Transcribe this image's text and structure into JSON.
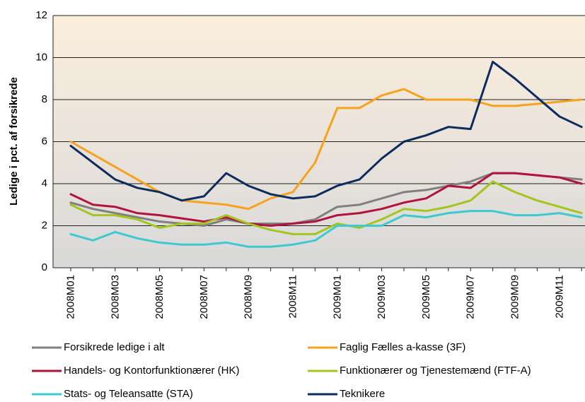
{
  "chart_data": {
    "type": "line",
    "ylabel": "Ledige i pct. af forsikrede",
    "categories": [
      "2008M01",
      null,
      "2008M03",
      null,
      "2008M05",
      null,
      "2008M07",
      null,
      "2008M09",
      null,
      "2008M11",
      null,
      "2009M01",
      null,
      "2009M03",
      null,
      "2009M05",
      null,
      "2009M07",
      null,
      "2009M09",
      null,
      "2009M11",
      null
    ],
    "series": [
      {
        "name": "Forsikrede ledige i alt",
        "color": "#808080",
        "values": [
          3.1,
          2.8,
          2.6,
          2.4,
          2.2,
          2.1,
          2.0,
          2.3,
          2.1,
          2.1,
          2.1,
          2.3,
          2.9,
          3.0,
          3.3,
          3.6,
          3.7,
          3.9,
          4.1,
          4.5,
          4.5,
          4.4,
          4.3,
          4.2
        ]
      },
      {
        "name": "Faglig Fælles a-kasse (3F)",
        "color": "#f6a21c",
        "values": [
          6.0,
          5.4,
          4.8,
          4.2,
          3.6,
          3.2,
          3.1,
          3.0,
          2.8,
          3.3,
          3.6,
          5.0,
          7.6,
          7.6,
          8.2,
          8.5,
          8.0,
          8.0,
          8.0,
          7.7,
          7.7,
          7.8,
          7.9,
          8.0
        ]
      },
      {
        "name": "Handels- og Kontorfunktionærer (HK)",
        "color": "#b3123f",
        "values": [
          3.5,
          3.0,
          2.9,
          2.6,
          2.5,
          2.35,
          2.2,
          2.4,
          2.1,
          2.0,
          2.1,
          2.2,
          2.5,
          2.6,
          2.8,
          3.1,
          3.3,
          3.9,
          3.8,
          4.5,
          4.5,
          4.4,
          4.3,
          4.0
        ]
      },
      {
        "name": "Funktionærer og Tjenestemænd (FTF-A)",
        "color": "#a3c61f",
        "values": [
          3.0,
          2.5,
          2.5,
          2.3,
          1.9,
          2.1,
          2.1,
          2.5,
          2.1,
          1.8,
          1.6,
          1.6,
          2.1,
          1.9,
          2.3,
          2.8,
          2.7,
          2.9,
          3.2,
          4.1,
          3.6,
          3.2,
          2.9,
          2.6
        ]
      },
      {
        "name": "Stats- og Teleansatte (STA)",
        "color": "#3ec9d1",
        "values": [
          1.6,
          1.3,
          1.7,
          1.4,
          1.2,
          1.1,
          1.1,
          1.2,
          1.0,
          1.0,
          1.1,
          1.3,
          2.0,
          2.0,
          2.0,
          2.5,
          2.4,
          2.6,
          2.7,
          2.7,
          2.5,
          2.5,
          2.6,
          2.4
        ]
      },
      {
        "name": "Teknikere",
        "color": "#0d2c5e",
        "values": [
          5.8,
          5.0,
          4.2,
          3.8,
          3.6,
          3.2,
          3.4,
          4.5,
          3.9,
          3.5,
          3.3,
          3.4,
          3.9,
          4.2,
          5.2,
          6.0,
          6.3,
          6.7,
          6.6,
          9.8,
          9.0,
          8.1,
          7.2,
          6.7
        ]
      }
    ],
    "ylim": [
      0,
      12
    ],
    "yticks": [
      0,
      2,
      4,
      6,
      8,
      10,
      12
    ],
    "grid": true,
    "legend": "bottom"
  }
}
